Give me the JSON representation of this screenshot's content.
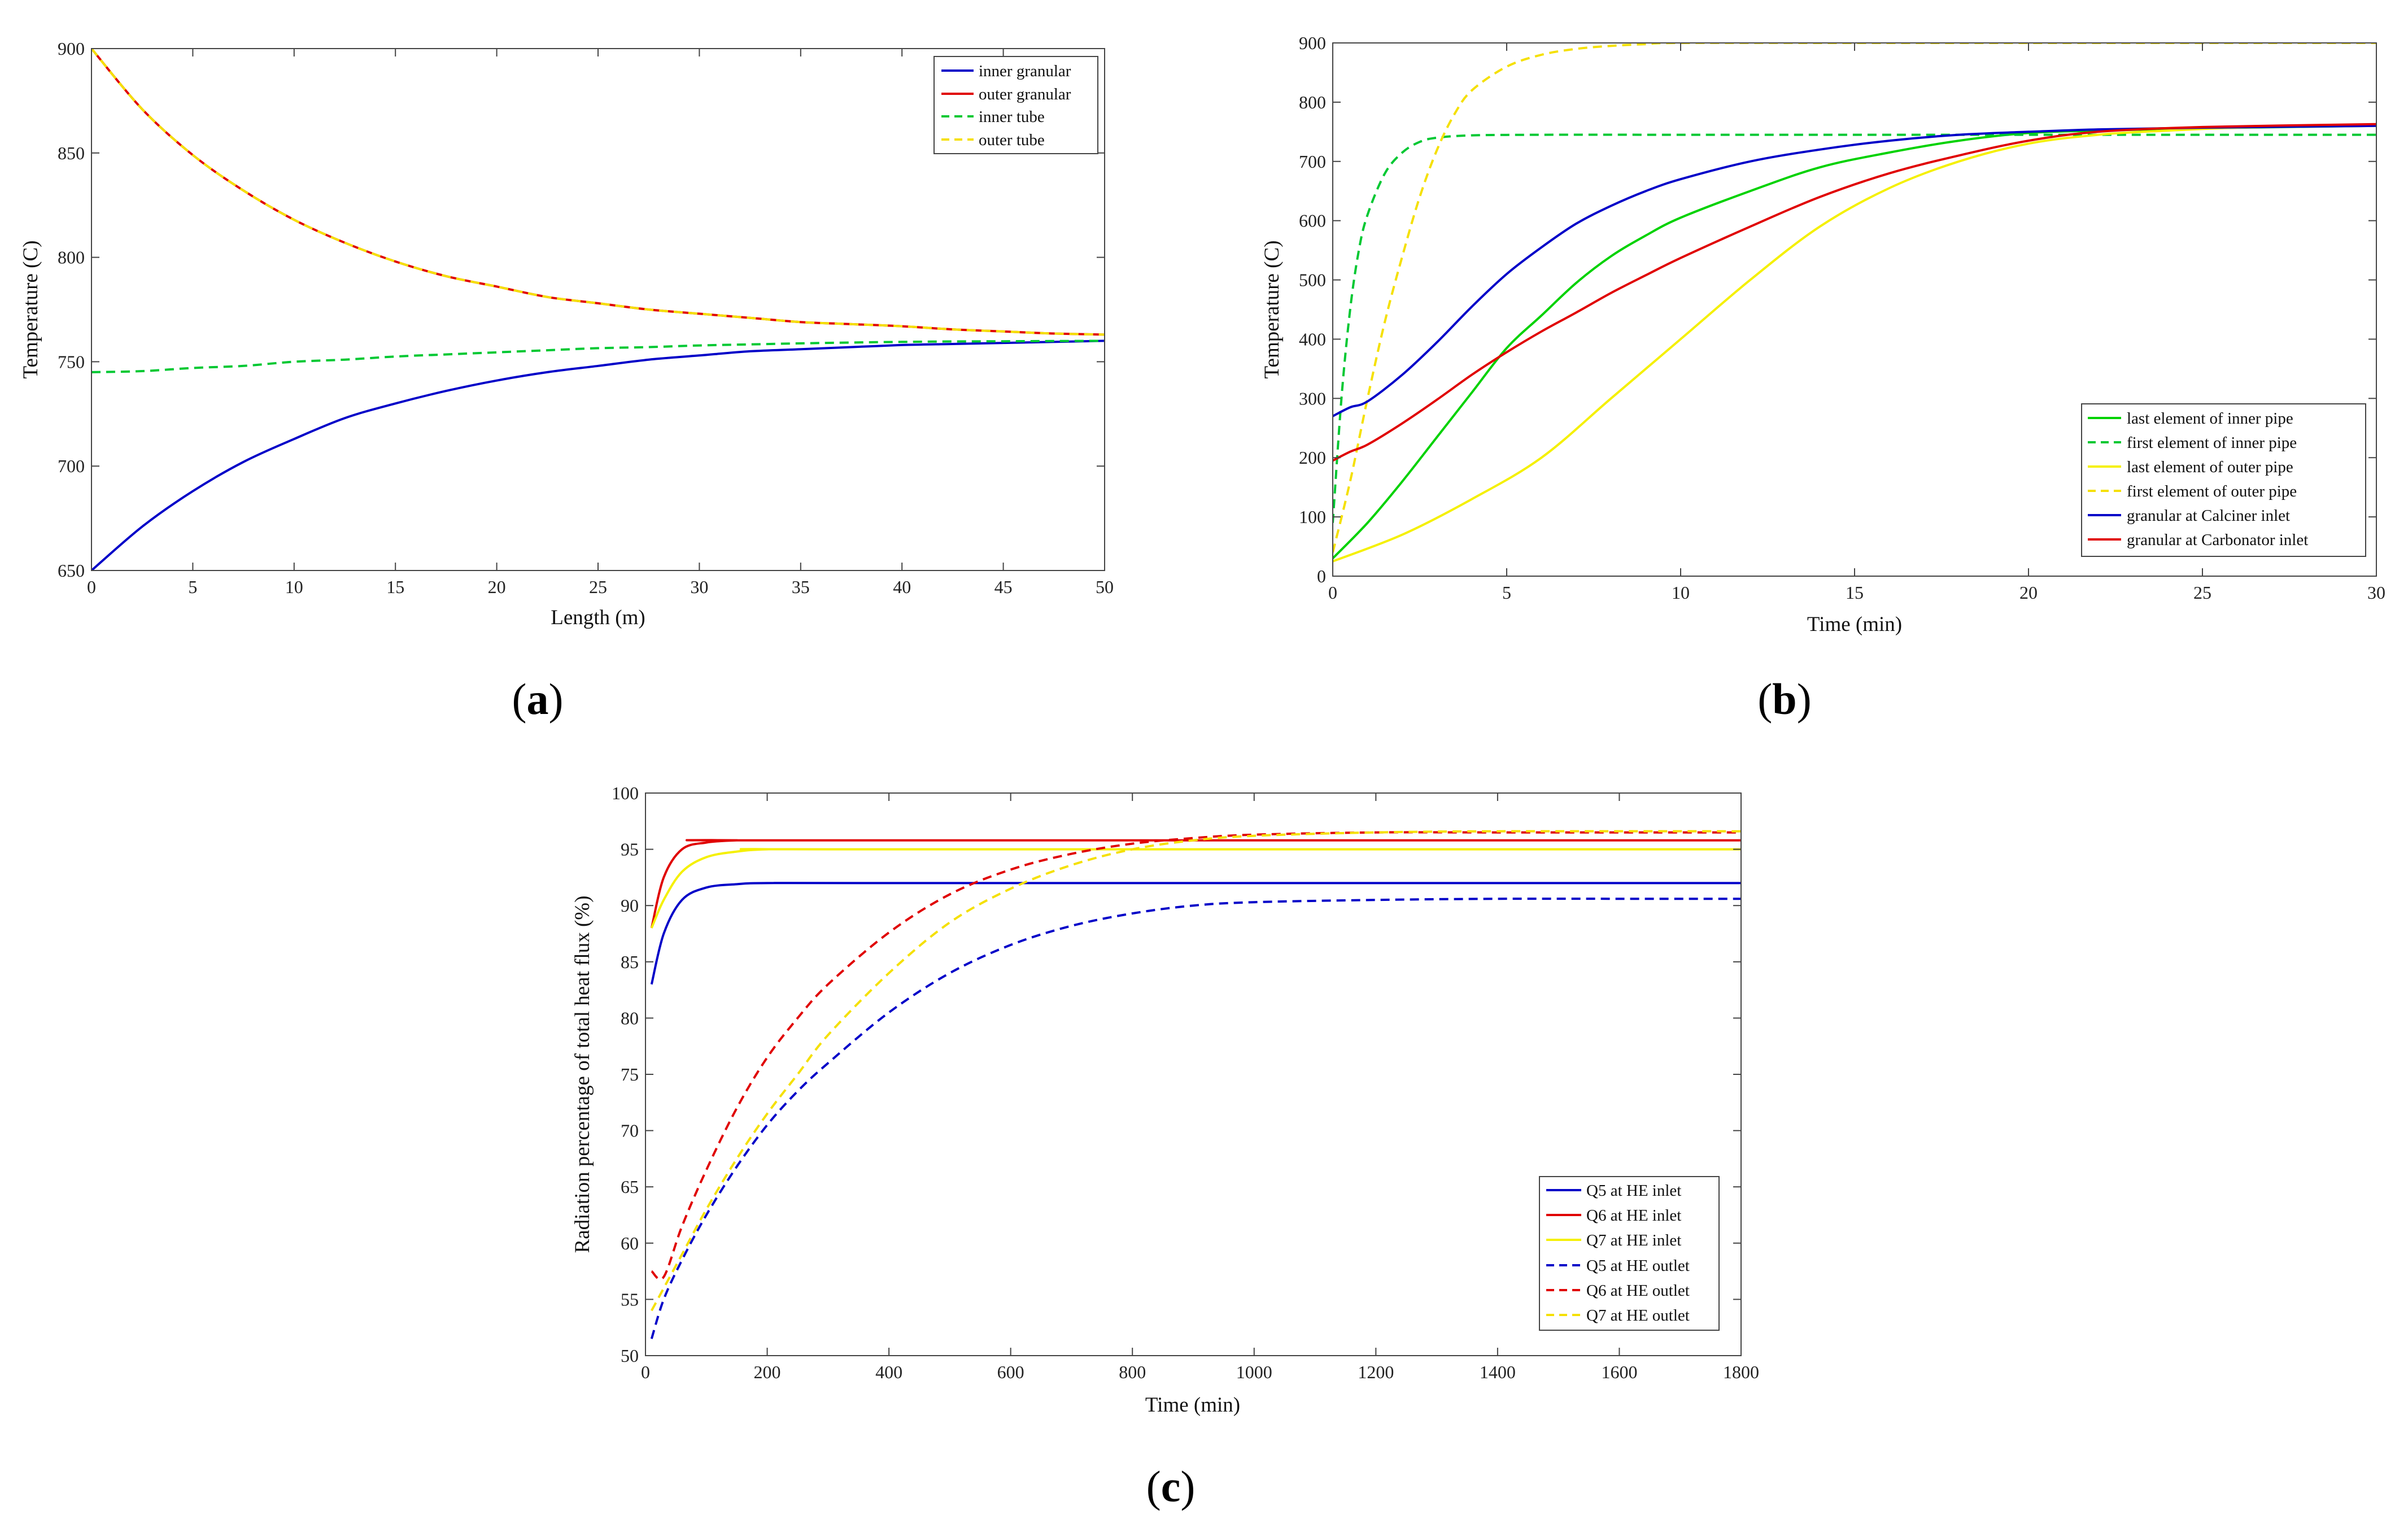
{
  "chart_data": [
    {
      "panel": "a",
      "type": "line",
      "caption": "(a)",
      "caption_letter": "a",
      "title": "",
      "xlabel": "Length (m)",
      "ylabel": "Temperature (C)",
      "xlim": [
        0,
        50
      ],
      "ylim": [
        650,
        900
      ],
      "xticks": [
        0,
        5,
        10,
        15,
        20,
        25,
        30,
        35,
        40,
        45,
        50
      ],
      "yticks": [
        650,
        700,
        750,
        800,
        850,
        900
      ],
      "grid": false,
      "legend_position": "top-right",
      "series": [
        {
          "name": "inner granular",
          "color": "#0000c8",
          "style": "solid",
          "x": [
            0,
            2.5,
            5,
            7.5,
            10,
            12.5,
            15,
            17.5,
            20,
            22.5,
            25,
            27.5,
            30,
            32.5,
            35,
            37.5,
            40,
            42.5,
            45,
            47.5,
            50
          ],
          "y": [
            650,
            671,
            688,
            702,
            713,
            723,
            730,
            736,
            741,
            745,
            748,
            751,
            753,
            755,
            756,
            757,
            758,
            758.5,
            759,
            759.5,
            760
          ]
        },
        {
          "name": "outer granular",
          "color": "#e00000",
          "style": "solid",
          "x": [
            0,
            2.5,
            5,
            7.5,
            10,
            12.5,
            15,
            17.5,
            20,
            22.5,
            25,
            27.5,
            30,
            32.5,
            35,
            37.5,
            40,
            42.5,
            45,
            47.5,
            50
          ],
          "y": [
            900,
            871,
            849,
            832,
            818,
            807,
            798,
            791,
            786,
            781,
            778,
            775,
            773,
            771,
            769,
            768,
            767,
            765.5,
            764.5,
            763.5,
            763
          ]
        },
        {
          "name": "inner tube",
          "color": "#00c832",
          "style": "dashed",
          "x": [
            0,
            2.5,
            5,
            7.5,
            10,
            12.5,
            15,
            17.5,
            20,
            22.5,
            25,
            27.5,
            30,
            32.5,
            35,
            37.5,
            40,
            42.5,
            45,
            47.5,
            50
          ],
          "y": [
            745,
            745.5,
            747,
            748,
            750,
            751,
            752.5,
            753.5,
            754.5,
            755.5,
            756.5,
            757,
            757.8,
            758.3,
            758.8,
            759.2,
            759.5,
            759.7,
            759.8,
            759.9,
            760
          ]
        },
        {
          "name": "outer tube",
          "color": "#f5e000",
          "style": "dashed",
          "x": [
            0,
            2.5,
            5,
            7.5,
            10,
            12.5,
            15,
            17.5,
            20,
            22.5,
            25,
            27.5,
            30,
            32.5,
            35,
            37.5,
            40,
            42.5,
            45,
            47.5,
            50
          ],
          "y": [
            900,
            871,
            849,
            832,
            818,
            807,
            798,
            791,
            786,
            781,
            778,
            775,
            773,
            771,
            769,
            768,
            767,
            765.5,
            764.5,
            763.5,
            763
          ]
        }
      ]
    },
    {
      "panel": "b",
      "type": "line",
      "caption": "(b)",
      "caption_letter": "b",
      "title": "",
      "xlabel": "Time (min)",
      "ylabel": "Temperature (C)",
      "xlim": [
        0,
        30
      ],
      "ylim": [
        0,
        900
      ],
      "xticks": [
        0,
        5,
        10,
        15,
        20,
        25,
        30
      ],
      "yticks": [
        0,
        100,
        200,
        300,
        400,
        500,
        600,
        700,
        800,
        900
      ],
      "grid": false,
      "legend_position": "bottom-right",
      "series": [
        {
          "name": "last element of inner pipe",
          "color": "#00d200",
          "style": "solid",
          "x": [
            0,
            1,
            2,
            3,
            4,
            5,
            6,
            7,
            8,
            9,
            10,
            12,
            14,
            16,
            18,
            20,
            22,
            25,
            30
          ],
          "y": [
            30,
            90,
            160,
            235,
            310,
            385,
            440,
            495,
            540,
            575,
            605,
            650,
            690,
            715,
            735,
            748,
            752,
            756,
            760
          ]
        },
        {
          "name": "first element of inner pipe",
          "color": "#00c832",
          "style": "dashed",
          "x": [
            0,
            0.25,
            0.5,
            0.75,
            1,
            1.5,
            2,
            2.5,
            3,
            4,
            6,
            10,
            15,
            20,
            30
          ],
          "y": [
            90,
            300,
            450,
            550,
            610,
            680,
            715,
            733,
            740,
            744,
            745,
            745,
            745,
            745,
            745
          ]
        },
        {
          "name": "last element of outer pipe",
          "color": "#f5f000",
          "style": "solid",
          "x": [
            0,
            2,
            4,
            6,
            8,
            10,
            12,
            14,
            16,
            18,
            20,
            22,
            24,
            26,
            28,
            30
          ],
          "y": [
            25,
            70,
            130,
            200,
            300,
            400,
            500,
            590,
            655,
            700,
            730,
            745,
            752,
            757,
            759,
            760
          ]
        },
        {
          "name": "first element of outer pipe",
          "color": "#f5e000",
          "style": "dashed",
          "x": [
            0,
            0.5,
            1,
            1.5,
            2,
            2.5,
            3,
            3.5,
            4,
            5,
            6,
            7,
            8,
            9,
            10,
            15,
            20,
            30
          ],
          "y": [
            40,
            160,
            300,
            430,
            540,
            640,
            720,
            780,
            820,
            860,
            880,
            890,
            895,
            898,
            900,
            900,
            900,
            900
          ]
        },
        {
          "name": "granular at Calciner inlet",
          "color": "#0000c8",
          "style": "solid",
          "x": [
            0,
            0.5,
            1,
            2,
            3,
            4,
            5,
            6,
            7,
            8,
            9,
            10,
            12,
            14,
            16,
            18,
            20,
            22,
            25,
            30
          ],
          "y": [
            270,
            285,
            295,
            340,
            395,
            455,
            510,
            555,
            595,
            625,
            650,
            670,
            700,
            720,
            735,
            745,
            750,
            754,
            757,
            760
          ]
        },
        {
          "name": "granular at Carbonator inlet",
          "color": "#e00000",
          "style": "solid",
          "x": [
            0,
            0.5,
            1,
            2,
            3,
            4,
            5,
            6,
            7,
            8,
            9,
            10,
            12,
            14,
            16,
            18,
            20,
            22,
            25,
            30
          ],
          "y": [
            195,
            210,
            222,
            258,
            298,
            340,
            378,
            413,
            445,
            478,
            508,
            537,
            590,
            640,
            680,
            710,
            735,
            750,
            758,
            763
          ]
        }
      ]
    },
    {
      "panel": "c",
      "type": "line",
      "caption": "(c)",
      "caption_letter": "c",
      "title": "",
      "xlabel": "Time (min)",
      "ylabel": "Radiation percentage of total heat flux (%)",
      "xlim": [
        0,
        1800
      ],
      "ylim": [
        50,
        100
      ],
      "xticks": [
        0,
        200,
        400,
        600,
        800,
        1000,
        1200,
        1400,
        1600,
        1800
      ],
      "yticks": [
        50,
        55,
        60,
        65,
        70,
        75,
        80,
        85,
        90,
        95,
        100
      ],
      "grid": false,
      "legend_position": "bottom-right",
      "series": [
        {
          "name": "Q5 at HE inlet",
          "color": "#0000c8",
          "style": "solid",
          "x": [
            10,
            30,
            60,
            100,
            150,
            200,
            400,
            1800
          ],
          "y": [
            83,
            87.5,
            90.5,
            91.6,
            91.9,
            92,
            92,
            92
          ]
        },
        {
          "name": "Q6 at HE inlet",
          "color": "#e00000",
          "style": "solid",
          "x": [
            10,
            30,
            60,
            100,
            150,
            200,
            1800
          ],
          "y": [
            88,
            92.5,
            95,
            95.6,
            95.8,
            95.8,
            95.8
          ]
        },
        {
          "name": "Q7 at HE inlet",
          "color": "#f5f000",
          "style": "solid",
          "x": [
            10,
            30,
            60,
            100,
            150,
            200,
            300,
            1800
          ],
          "y": [
            88,
            90.5,
            93,
            94.3,
            94.8,
            95,
            95,
            95
          ]
        },
        {
          "name": "Q5 at HE outlet",
          "color": "#0000c8",
          "style": "dashed",
          "x": [
            10,
            30,
            60,
            100,
            150,
            200,
            250,
            300,
            400,
            500,
            600,
            700,
            800,
            900,
            1000,
            1200,
            1400,
            1600,
            1800
          ],
          "y": [
            51.5,
            55,
            58.5,
            62.5,
            66.8,
            70.5,
            73.5,
            76,
            80.5,
            84,
            86.5,
            88.2,
            89.3,
            90,
            90.3,
            90.5,
            90.6,
            90.6,
            90.6
          ]
        },
        {
          "name": "Q6 at HE outlet",
          "color": "#e00000",
          "style": "dashed",
          "x": [
            10,
            30,
            60,
            100,
            150,
            200,
            250,
            300,
            400,
            500,
            600,
            700,
            800,
            900,
            1000,
            1200,
            1400,
            1800
          ],
          "y": [
            57.5,
            57,
            61.5,
            66.5,
            72,
            76.5,
            80,
            83,
            87.6,
            91,
            93.2,
            94.6,
            95.5,
            96,
            96.3,
            96.5,
            96.5,
            96.5
          ]
        },
        {
          "name": "Q7 at HE outlet",
          "color": "#f5e000",
          "style": "dashed",
          "x": [
            10,
            30,
            60,
            100,
            150,
            200,
            250,
            300,
            400,
            500,
            600,
            700,
            800,
            900,
            1000,
            1200,
            1400,
            1800
          ],
          "y": [
            54,
            56,
            59,
            63,
            67.5,
            71.5,
            75,
            78.5,
            84,
            88.5,
            91.5,
            93.6,
            95,
            95.8,
            96.2,
            96.5,
            96.6,
            96.6
          ]
        }
      ]
    }
  ]
}
